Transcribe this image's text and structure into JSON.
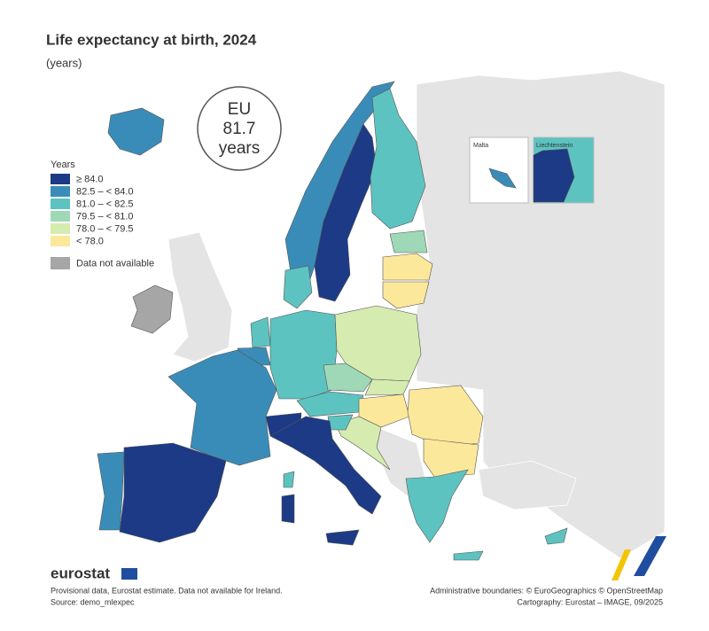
{
  "header": {
    "title": "Life expectancy at birth, 2024",
    "subtitle": "(years)"
  },
  "eu_badge": {
    "label": "EU",
    "value": 81.7,
    "unit": "years"
  },
  "legend": {
    "title": "Years",
    "items": [
      {
        "label": "≥ 84.0",
        "color": "#1c3a85"
      },
      {
        "label": "82.5 – < 84.0",
        "color": "#3a8cb8"
      },
      {
        "label": "81.0 – < 82.5",
        "color": "#5dc3c0"
      },
      {
        "label": "79.5 – < 81.0",
        "color": "#9fd8b6"
      },
      {
        "label": "78.0 – < 79.5",
        "color": "#d5ebaf"
      },
      {
        "label": "< 78.0",
        "color": "#fce89a"
      }
    ],
    "not_available": {
      "label": "Data not available",
      "color": "#a6a6a6"
    }
  },
  "insets": [
    "Malta",
    "Liechtenstein"
  ],
  "footer": {
    "logo": "eurostat",
    "notes": [
      "Provisional data, Eurostat estimate. Data not available for Ireland.",
      "Source: demo_mlexpec"
    ],
    "credits": [
      "Administrative boundaries: © EuroGeographics © OpenStreetMap",
      "Cartography: Eurostat – IMAGE, 09/2025"
    ]
  }
}
